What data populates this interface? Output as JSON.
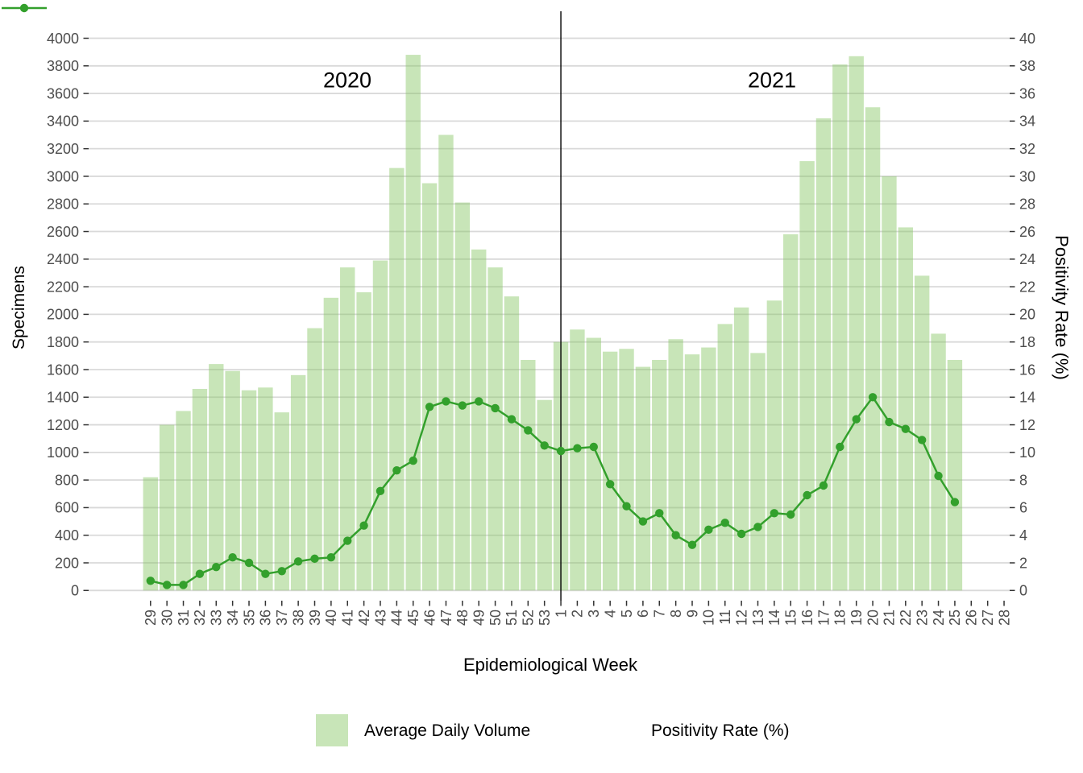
{
  "titles": {
    "x_axis": "Epidemiological Week",
    "y_left": "Specimens",
    "y_right": "Positivity Rate (%)"
  },
  "annotations": {
    "left_year": "2020",
    "right_year": "2021"
  },
  "legend": {
    "position": "bottom-center",
    "items": [
      {
        "label": "Average Daily Volume",
        "swatch": "bar"
      },
      {
        "label": "Positivity Rate (%)",
        "swatch": "line-point"
      }
    ]
  },
  "colors": {
    "bar_fill": "rgba(135,198,100,0.46)",
    "line": "#33a02c",
    "gridline": "#d9d9d9",
    "axis_text": "#4d4d4d",
    "tick": "#333333",
    "separator_line": "#000000",
    "background": "#ffffff"
  },
  "chart_data": {
    "type": "bar",
    "subtype": "combo-bar-line-dual-axis",
    "title": "",
    "xlabel": "Epidemiological Week",
    "ylabel_left": "Specimens",
    "ylabel_right": "Positivity Rate (%)",
    "ylim_left": [
      0,
      4000
    ],
    "ytick_step_left": 200,
    "ylim_right": [
      0,
      40
    ],
    "ytick_step_right": 2,
    "grid": "major-horizontal",
    "legend_position": "bottom-center",
    "x_groups": [
      {
        "year": "2020",
        "weeks": "29-53"
      },
      {
        "year": "2021",
        "weeks": "1-28"
      }
    ],
    "separator_at_category_index": 25,
    "categories": [
      "29",
      "30",
      "31",
      "32",
      "33",
      "34",
      "35",
      "36",
      "37",
      "38",
      "39",
      "40",
      "41",
      "42",
      "43",
      "44",
      "45",
      "46",
      "47",
      "48",
      "49",
      "50",
      "51",
      "52",
      "53",
      "1",
      "2",
      "3",
      "4",
      "5",
      "6",
      "7",
      "8",
      "9",
      "10",
      "11",
      "12",
      "13",
      "14",
      "15",
      "16",
      "17",
      "18",
      "19",
      "20",
      "21",
      "22",
      "23",
      "24",
      "25",
      "26",
      "27",
      "28"
    ],
    "series": [
      {
        "name": "Average Daily Volume",
        "type": "bar",
        "axis": "left",
        "values": [
          820,
          1200,
          1300,
          1460,
          1640,
          1590,
          1450,
          1470,
          1290,
          1560,
          1900,
          2120,
          2340,
          2160,
          2390,
          3060,
          3880,
          2950,
          3300,
          2810,
          2470,
          2340,
          2130,
          1670,
          1380,
          1800,
          1890,
          1830,
          1730,
          1750,
          1620,
          1670,
          1820,
          1710,
          1760,
          1930,
          2050,
          1720,
          2100,
          2580,
          3110,
          3420,
          3810,
          3870,
          3500,
          3000,
          2630,
          2280,
          1860,
          1670,
          null,
          null,
          null
        ]
      },
      {
        "name": "Positivity Rate (%)",
        "type": "line",
        "axis": "right",
        "values": [
          0.7,
          0.4,
          0.4,
          1.2,
          1.7,
          2.4,
          2.0,
          1.2,
          1.4,
          2.1,
          2.3,
          2.4,
          3.6,
          4.7,
          7.2,
          8.7,
          9.4,
          13.3,
          13.7,
          13.4,
          13.7,
          13.2,
          12.4,
          11.6,
          10.5,
          10.1,
          10.3,
          10.4,
          7.7,
          6.1,
          5.0,
          5.6,
          4.0,
          3.3,
          4.4,
          4.9,
          4.1,
          4.6,
          5.6,
          5.5,
          6.9,
          7.6,
          10.4,
          12.4,
          14.0,
          12.2,
          11.7,
          10.9,
          8.3,
          6.4,
          null,
          null,
          null
        ]
      }
    ]
  }
}
